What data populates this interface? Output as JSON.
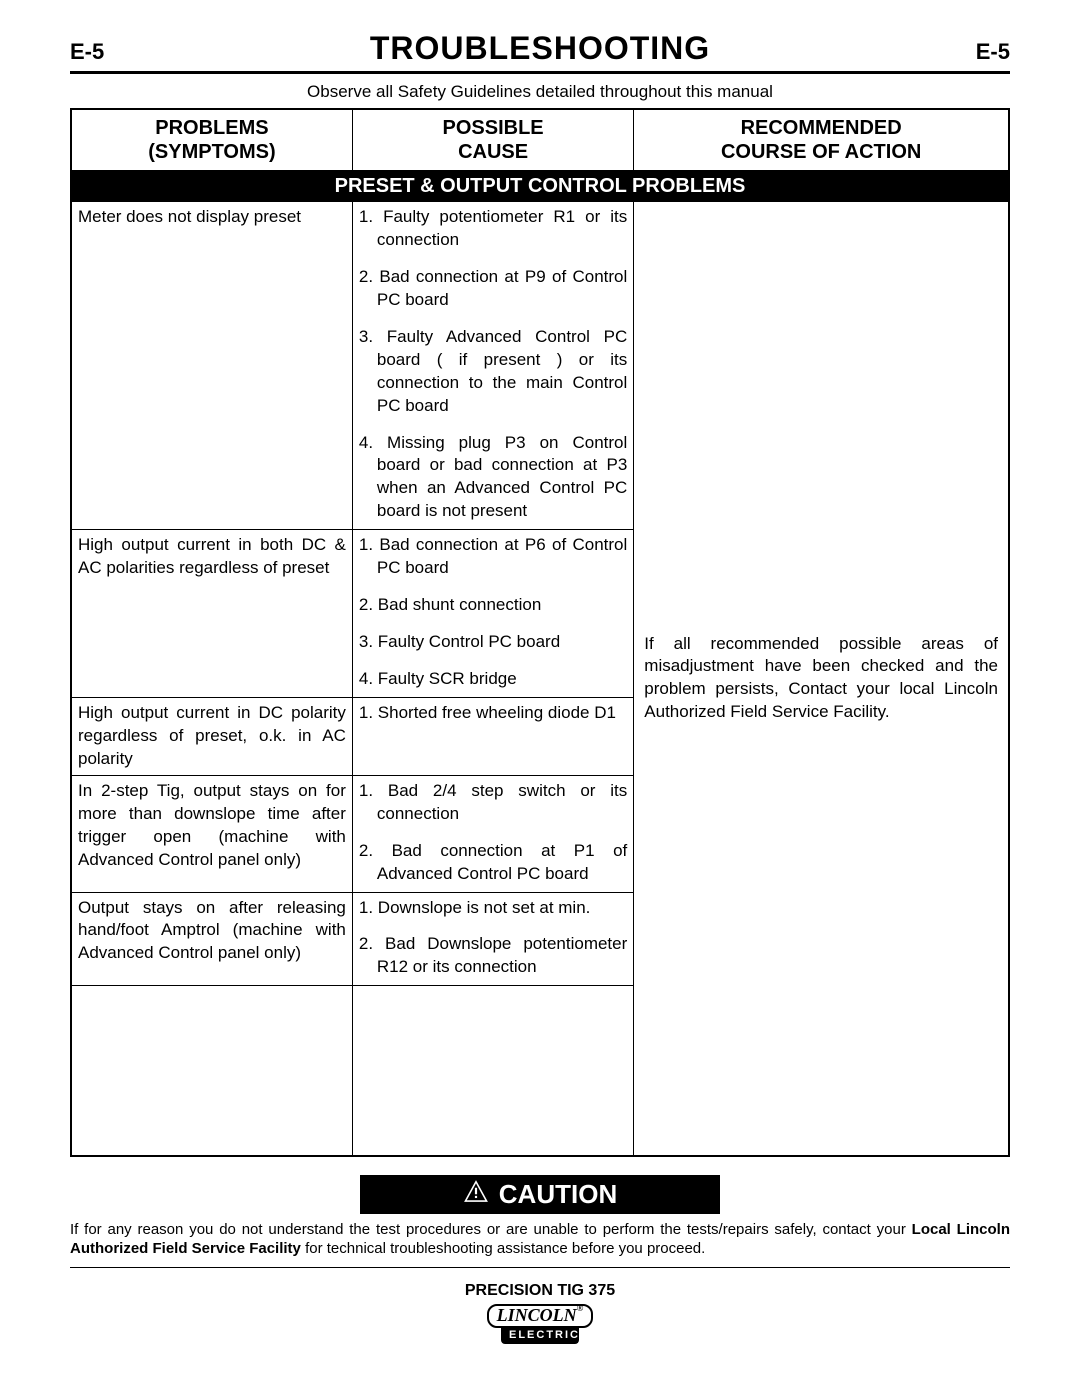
{
  "page_number": "E-5",
  "page_title": "TROUBLESHOOTING",
  "safety_note": "Observe all Safety Guidelines detailed throughout this manual",
  "columns": {
    "c1_l1": "PROBLEMS",
    "c1_l2": "(SYMPTOMS)",
    "c2_l1": "POSSIBLE",
    "c2_l2": "CAUSE",
    "c3_l1": "RECOMMENDED",
    "c3_l2": "COURSE OF ACTION"
  },
  "section_title": "PRESET & OUTPUT CONTROL  PROBLEMS",
  "rows": [
    {
      "problem": "Meter does not display preset",
      "causes": [
        "Faulty potentiometer R1 or its connection",
        "Bad connection at P9 of Control PC board",
        "Faulty Advanced Control PC board ( if present ) or its connection to the main Control PC board",
        "Missing plug P3 on Control board or bad connection at P3 when an Advanced Control PC board is not present"
      ]
    },
    {
      "problem": "High output current in both DC & AC polarities regardless of preset",
      "causes": [
        "Bad connection at P6 of Control PC board",
        "Bad shunt connection",
        "Faulty Control PC board",
        "Faulty SCR bridge"
      ]
    },
    {
      "problem": "High output current in DC polarity regardless of preset, o.k. in AC polarity",
      "causes": [
        "Shorted free wheeling diode D1"
      ]
    },
    {
      "problem": "In 2-step Tig, output stays on for more than downslope time after trigger open (machine with Advanced Control panel only)",
      "causes": [
        "Bad 2/4 step switch or its connection",
        "Bad connection at P1 of Advanced Control PC board"
      ]
    },
    {
      "problem": "Output stays on after releasing hand/foot Amptrol (machine with Advanced  Control panel only)",
      "causes": [
        "Downslope is not set at min.",
        "Bad Downslope potentiometer R12 or its connection"
      ]
    }
  ],
  "action_text_1": "If all recommended possible areas of misadjustment have been checked and the problem persists, Contact your local Lincoln Authorized Field Service Facility.",
  "caution_label": "CAUTION",
  "caution_text_pre": "If for any reason you do not understand the test procedures or are unable to perform the tests/repairs safely, contact your ",
  "caution_text_bold": "Local Lincoln Authorized Field Service Facility",
  "caution_text_post": " for technical troubleshooting assistance before you proceed.",
  "model": "PRECISION TIG 375",
  "logo_top": "LINCOLN",
  "logo_reg": "®",
  "logo_bot": "ELECTRIC",
  "colors": {
    "text": "#000000",
    "bg": "#ffffff",
    "band_bg": "#000000",
    "band_fg": "#ffffff"
  }
}
